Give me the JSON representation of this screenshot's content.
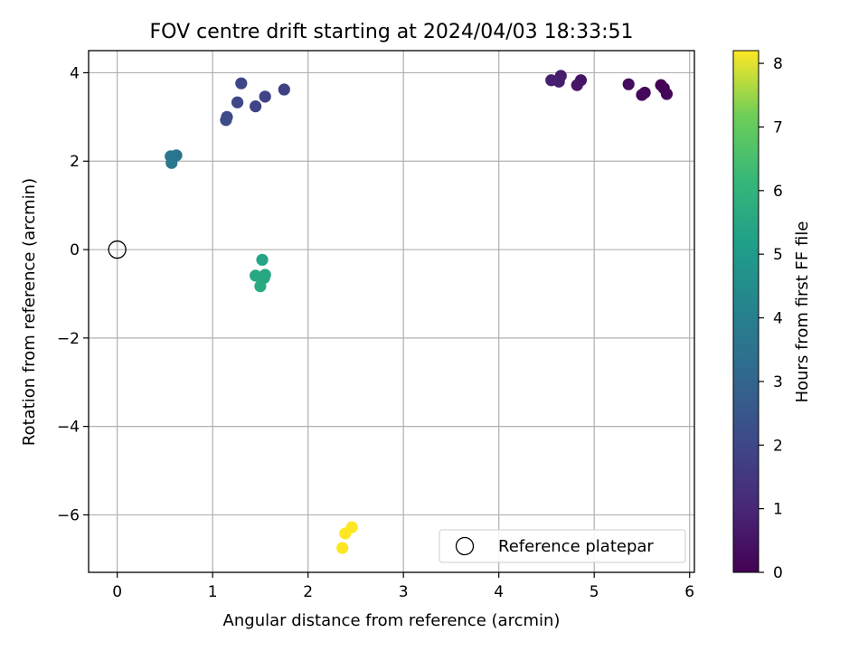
{
  "chart_data": {
    "type": "scatter",
    "title": "FOV centre drift starting at 2024/04/03 18:33:51",
    "xlabel": "Angular distance from reference (arcmin)",
    "ylabel": "Rotation from reference (arcmin)",
    "xlim": [
      -0.3,
      6.05
    ],
    "ylim": [
      -7.3,
      4.5
    ],
    "xticks": [
      0,
      1,
      2,
      3,
      4,
      5,
      6
    ],
    "yticks": [
      -6,
      -4,
      -2,
      0,
      2,
      4
    ],
    "ytick_labels": [
      "−6",
      "−4",
      "−2",
      "0",
      "2",
      "4"
    ],
    "grid": true,
    "colormap": "viridis",
    "colorbar": {
      "label": "Hours from first FF file",
      "range": [
        0,
        8.2
      ],
      "ticks": [
        0,
        1,
        2,
        3,
        4,
        5,
        6,
        7,
        8
      ]
    },
    "legend": {
      "position": "lower-right",
      "entries": [
        {
          "label": "Reference platepar",
          "marker": "open-circle"
        }
      ]
    },
    "reference_point": {
      "x": 0,
      "y": 0
    },
    "points": [
      {
        "x": 5.7,
        "y": 3.72,
        "hours": 0.0
      },
      {
        "x": 5.73,
        "y": 3.65,
        "hours": 0.05
      },
      {
        "x": 5.76,
        "y": 3.52,
        "hours": 0.1
      },
      {
        "x": 5.5,
        "y": 3.5,
        "hours": 0.15
      },
      {
        "x": 5.53,
        "y": 3.55,
        "hours": 0.2
      },
      {
        "x": 5.36,
        "y": 3.74,
        "hours": 0.3
      },
      {
        "x": 4.86,
        "y": 3.83,
        "hours": 0.5
      },
      {
        "x": 4.82,
        "y": 3.72,
        "hours": 0.55
      },
      {
        "x": 4.65,
        "y": 3.93,
        "hours": 0.7
      },
      {
        "x": 4.63,
        "y": 3.8,
        "hours": 0.75
      },
      {
        "x": 4.55,
        "y": 3.83,
        "hours": 0.8
      },
      {
        "x": 1.75,
        "y": 3.62,
        "hours": 1.8
      },
      {
        "x": 1.55,
        "y": 3.46,
        "hours": 1.85
      },
      {
        "x": 1.45,
        "y": 3.24,
        "hours": 1.9
      },
      {
        "x": 1.3,
        "y": 3.76,
        "hours": 1.95
      },
      {
        "x": 1.26,
        "y": 3.33,
        "hours": 2.0
      },
      {
        "x": 1.15,
        "y": 3.0,
        "hours": 2.05
      },
      {
        "x": 1.14,
        "y": 2.93,
        "hours": 2.1
      },
      {
        "x": 0.62,
        "y": 2.13,
        "hours": 3.5
      },
      {
        "x": 0.56,
        "y": 2.11,
        "hours": 3.6
      },
      {
        "x": 0.57,
        "y": 1.96,
        "hours": 3.7
      },
      {
        "x": 1.52,
        "y": -0.23,
        "hours": 5.4
      },
      {
        "x": 1.45,
        "y": -0.59,
        "hours": 5.45
      },
      {
        "x": 1.55,
        "y": -0.57,
        "hours": 5.5
      },
      {
        "x": 1.54,
        "y": -0.64,
        "hours": 5.55
      },
      {
        "x": 1.5,
        "y": -0.83,
        "hours": 5.6
      },
      {
        "x": 2.46,
        "y": -6.28,
        "hours": 8.2
      },
      {
        "x": 2.39,
        "y": -6.42,
        "hours": 8.2
      },
      {
        "x": 2.36,
        "y": -6.75,
        "hours": 8.2
      }
    ]
  }
}
